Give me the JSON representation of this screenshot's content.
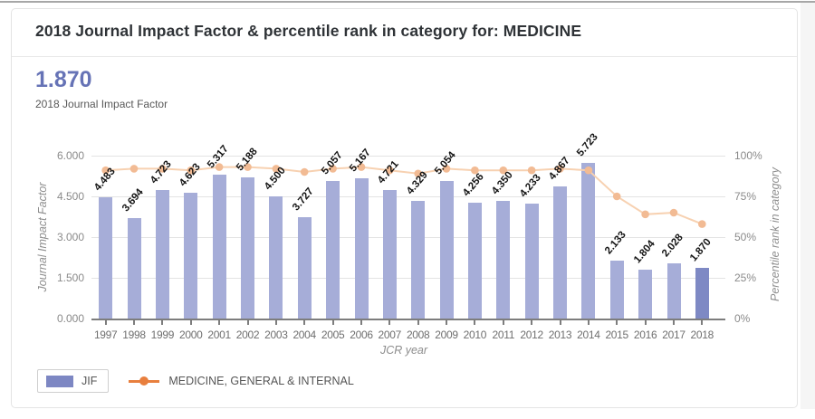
{
  "header": {
    "title": "2018 Journal Impact Factor & percentile rank in category for: MEDICINE"
  },
  "summary": {
    "value": "1.870",
    "caption": "2018 Journal Impact Factor"
  },
  "chart_data": {
    "type": "bar",
    "title": "2018 Journal Impact Factor & percentile rank in category for: MEDICINE",
    "categories": [
      "1997",
      "1998",
      "1999",
      "2000",
      "2001",
      "2002",
      "2003",
      "2004",
      "2005",
      "2006",
      "2007",
      "2008",
      "2009",
      "2010",
      "2011",
      "2012",
      "2013",
      "2014",
      "2015",
      "2016",
      "2017",
      "2018"
    ],
    "series": [
      {
        "name": "JIF",
        "type": "bar",
        "axis": "left",
        "values": [
          4.483,
          3.694,
          4.723,
          4.623,
          5.317,
          5.188,
          4.5,
          3.727,
          5.057,
          5.167,
          4.721,
          4.329,
          5.054,
          4.256,
          4.35,
          4.233,
          4.867,
          5.723,
          2.133,
          1.804,
          2.028,
          1.87
        ]
      },
      {
        "name": "MEDICINE, GENERAL & INTERNAL",
        "type": "line",
        "axis": "right",
        "values": [
          91,
          92,
          92,
          91,
          93,
          93,
          92,
          90,
          92,
          93,
          91,
          89,
          92,
          91,
          91,
          91,
          92,
          91,
          75,
          64,
          65,
          58
        ]
      }
    ],
    "bar_labels": [
      "4.483",
      "3.694",
      "4.723",
      "4.623",
      "5.317",
      "5.188",
      "4.500",
      "3.727",
      "5.057",
      "5.167",
      "4.721",
      "4.329",
      "5.054",
      "4.256",
      "4.350",
      "4.233",
      "4.867",
      "5.723",
      "2.133",
      "1.804",
      "2.028",
      "1.870"
    ],
    "highlight_index": 21,
    "xlabel": "JCR year",
    "ylabel_left": "Journal Impact Factor",
    "ylabel_right": "Percentile rank in category",
    "ylim_left": [
      0,
      6
    ],
    "yticks_left": [
      "6.000",
      "4.500",
      "3.000",
      "1.500",
      "0.000"
    ],
    "ylim_right": [
      0,
      100
    ],
    "yticks_right": [
      "100%",
      "75%",
      "50%",
      "25%",
      "0%"
    ],
    "grid": true,
    "legend_position": "bottom-left"
  },
  "legend": {
    "jif_label": "JIF",
    "category_label": "MEDICINE, GENERAL & INTERNAL"
  },
  "colors": {
    "bar": "#a6add8",
    "bar_highlight": "#7e89c4",
    "line": "#f7d1b1",
    "marker": "#f2bb94",
    "legend_line": "#e87f3e",
    "accent_value": "#6673b6",
    "grid": "#e3e3e3",
    "axis": "#7d7d7d"
  }
}
